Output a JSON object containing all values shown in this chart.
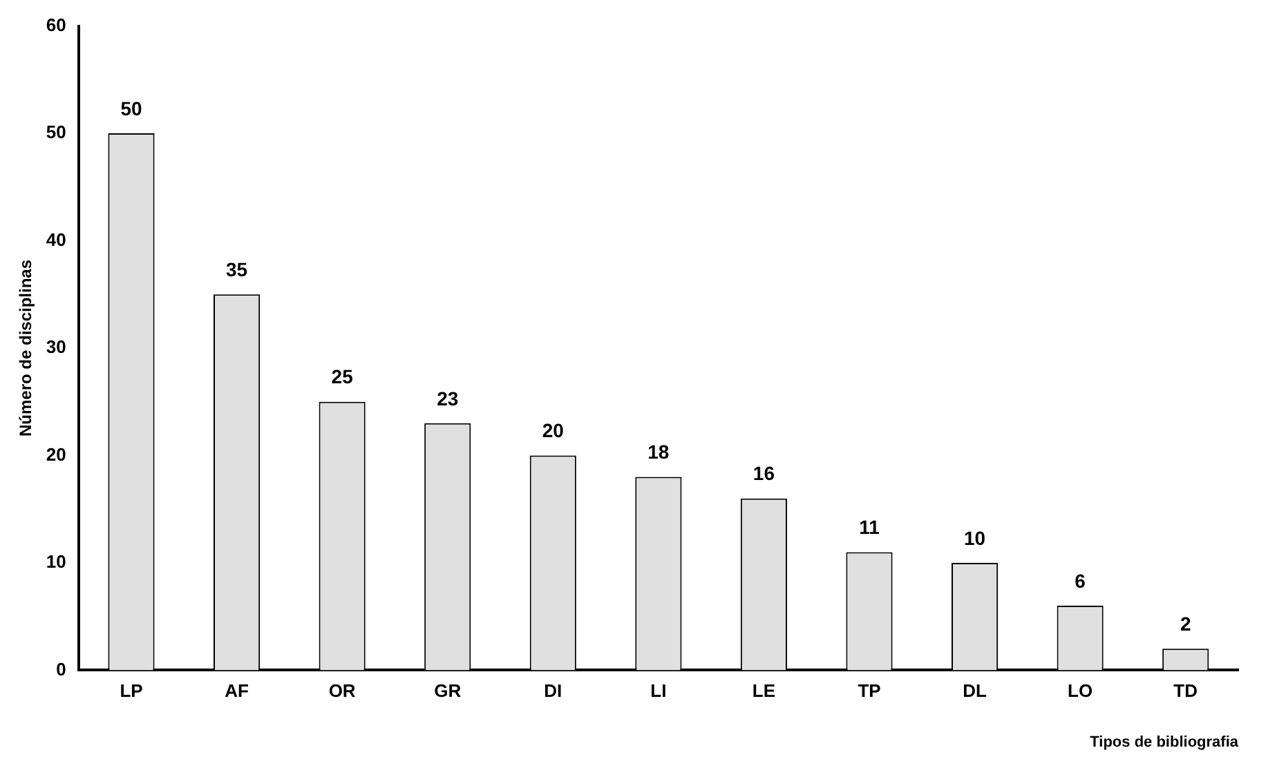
{
  "chart_data": {
    "type": "bar",
    "xlabel": "Tipos de bibliografia",
    "ylabel": "Número de disciplinas",
    "categories": [
      "LP",
      "AF",
      "OR",
      "GR",
      "DI",
      "LI",
      "LE",
      "TP",
      "DL",
      "LO",
      "TD"
    ],
    "values": [
      50,
      35,
      25,
      23,
      20,
      18,
      16,
      11,
      10,
      6,
      2
    ],
    "color": "#e0e0e0",
    "ylim": [
      0,
      60
    ],
    "yticks": [
      0,
      10,
      20,
      30,
      40,
      50,
      60
    ],
    "grid": false,
    "legend": false,
    "data_labels": true
  }
}
